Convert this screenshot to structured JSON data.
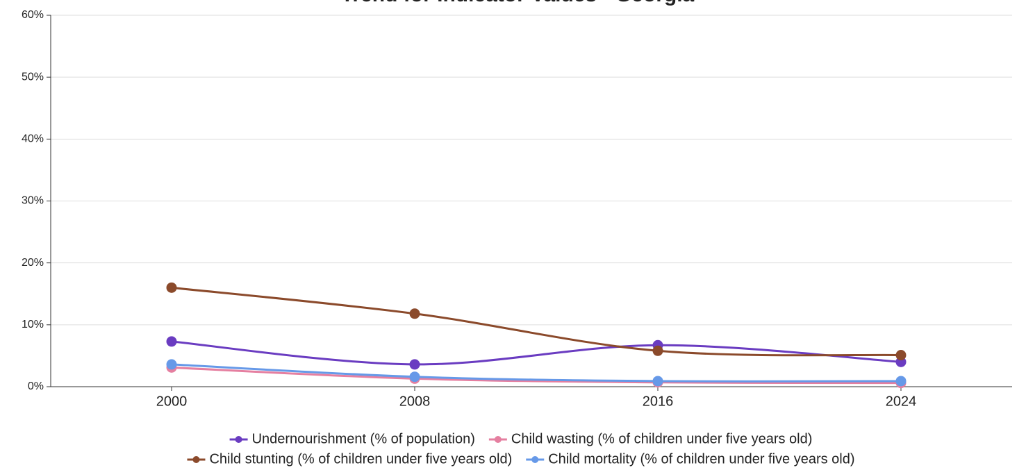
{
  "chart_data": {
    "type": "line",
    "title": "Trend for Indicator Values - Georgia",
    "categories": [
      "2000",
      "2008",
      "2016",
      "2024"
    ],
    "series": [
      {
        "name": "Undernourishment (% of population)",
        "color": "#6a3cc1",
        "values": [
          7.3,
          3.6,
          6.7,
          4.0
        ]
      },
      {
        "name": "Child wasting (% of children under five years old)",
        "color": "#e57fa0",
        "values": [
          3.1,
          1.3,
          0.7,
          0.6
        ]
      },
      {
        "name": "Child stunting (% of children under five years old)",
        "color": "#8b4a2b",
        "values": [
          16.0,
          11.8,
          5.8,
          5.1
        ]
      },
      {
        "name": "Child mortality (% of children under five years old)",
        "color": "#6699e8",
        "values": [
          3.6,
          1.6,
          0.9,
          0.9
        ]
      }
    ],
    "ylim": [
      0,
      60
    ],
    "yticks": [
      {
        "value": 0,
        "label": "0%"
      },
      {
        "value": 10,
        "label": "10%"
      },
      {
        "value": 20,
        "label": "20%"
      },
      {
        "value": 30,
        "label": "30%"
      },
      {
        "value": 40,
        "label": "40%"
      },
      {
        "value": 50,
        "label": "50%"
      },
      {
        "value": 60,
        "label": "60%"
      }
    ],
    "grid": true
  }
}
